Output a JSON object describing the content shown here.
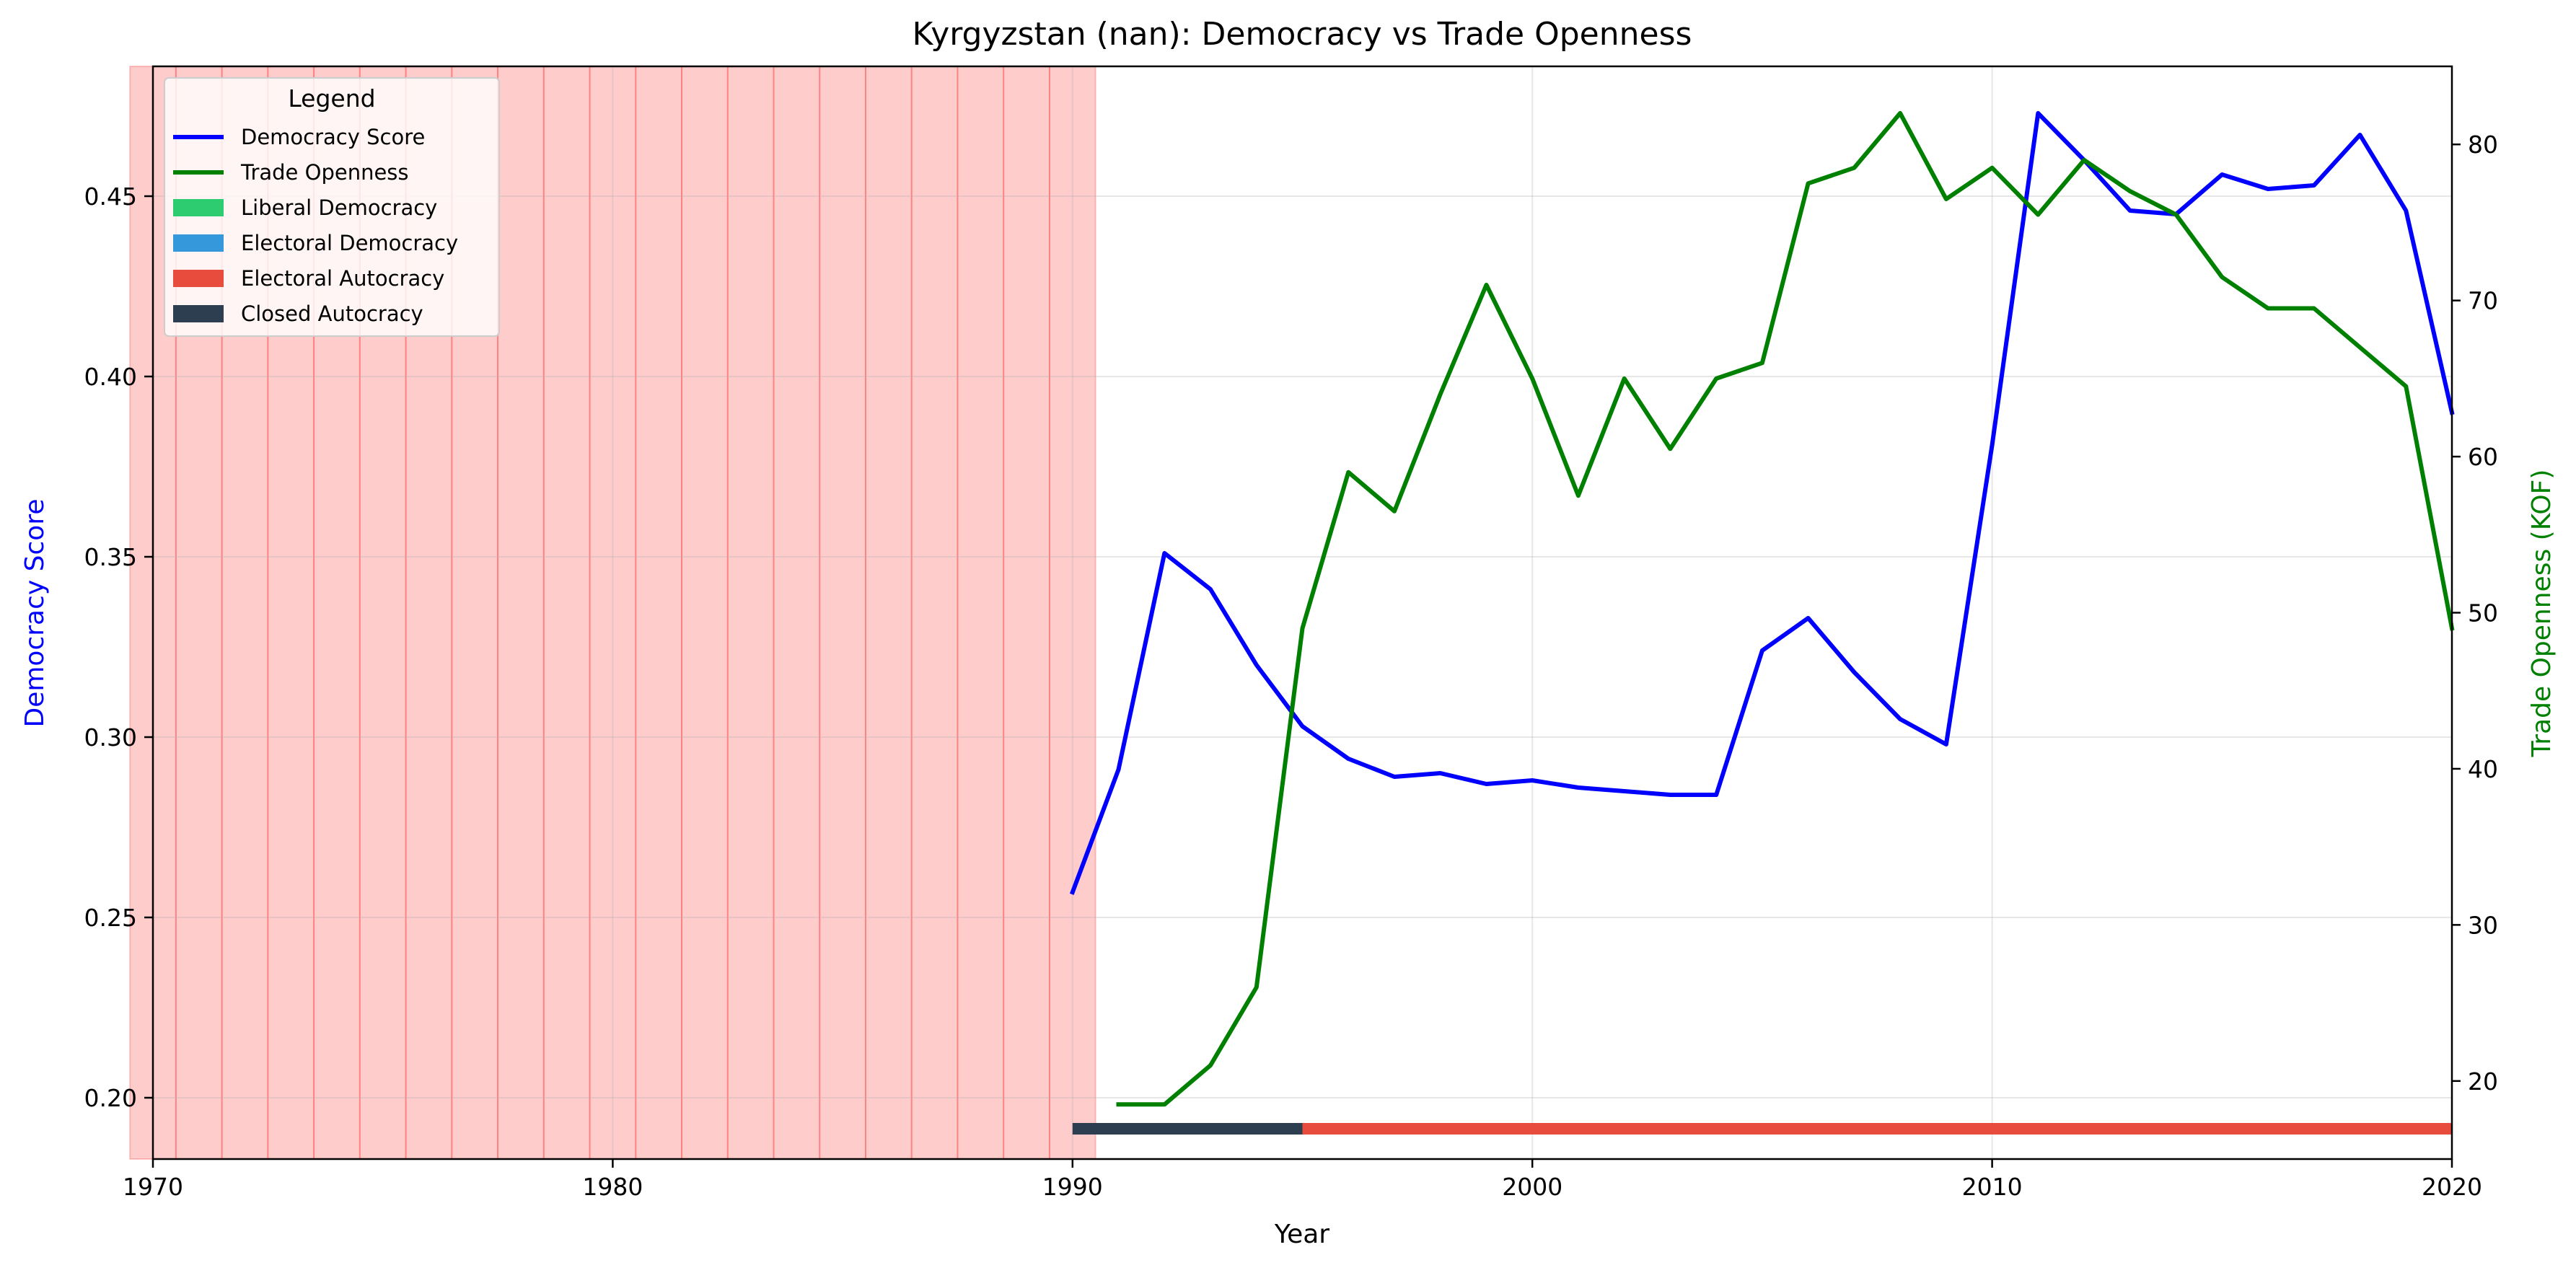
{
  "chart_data": {
    "type": "line",
    "title": "Kyrgyzstan (nan): Democracy vs Trade Openness",
    "xlabel": "Year",
    "ylabel": "Democracy Score",
    "y2label": "Trade Openness (KOF)",
    "xlim": [
      1970,
      2020
    ],
    "ylim": [
      0.183,
      0.486
    ],
    "y2lim": [
      15,
      85
    ],
    "x_ticks": [
      1970,
      1980,
      1990,
      2000,
      2010,
      2020
    ],
    "y_ticks": [
      0.2,
      0.25,
      0.3,
      0.35,
      0.4,
      0.45
    ],
    "y2_ticks": [
      20,
      30,
      40,
      50,
      60,
      70,
      80
    ],
    "grid": true,
    "legend": {
      "title": "Legend",
      "placement": "top-left",
      "entries": [
        {
          "label": "Democracy Score",
          "kind": "line",
          "color": "#0000ff"
        },
        {
          "label": "Trade Openness",
          "kind": "line",
          "color": "#008000"
        },
        {
          "label": "Liberal Democracy",
          "kind": "patch",
          "color": "#2ecc71"
        },
        {
          "label": "Electoral Democracy",
          "kind": "patch",
          "color": "#3498db"
        },
        {
          "label": "Electoral Autocracy",
          "kind": "patch",
          "color": "#e74c3c"
        },
        {
          "label": "Closed Autocracy",
          "kind": "patch",
          "color": "#2c3e50"
        }
      ]
    },
    "shaded_years": [
      1970,
      1971,
      1972,
      1973,
      1974,
      1975,
      1976,
      1977,
      1978,
      1979,
      1980,
      1981,
      1982,
      1983,
      1984,
      1985,
      1986,
      1987,
      1988,
      1989,
      1990
    ],
    "shade_color": "#ff0000",
    "series": [
      {
        "name": "Democracy Score",
        "axis": "left",
        "color": "#0000ff",
        "x": [
          1990,
          1991,
          1992,
          1993,
          1994,
          1995,
          1996,
          1997,
          1998,
          1999,
          2000,
          2001,
          2002,
          2003,
          2004,
          2005,
          2006,
          2007,
          2008,
          2009,
          2010,
          2011,
          2012,
          2013,
          2014,
          2015,
          2016,
          2017,
          2018,
          2019,
          2020
        ],
        "y": [
          0.257,
          0.291,
          0.351,
          0.341,
          0.32,
          0.303,
          0.294,
          0.289,
          0.29,
          0.287,
          0.288,
          0.286,
          0.285,
          0.284,
          0.284,
          0.324,
          0.333,
          0.318,
          0.305,
          0.298,
          0.381,
          0.473,
          0.46,
          0.446,
          0.445,
          0.456,
          0.452,
          0.453,
          0.467,
          0.446,
          0.39
        ]
      },
      {
        "name": "Trade Openness",
        "axis": "right",
        "color": "#008000",
        "x": [
          1991,
          1992,
          1993,
          1994,
          1995,
          1996,
          1997,
          1998,
          1999,
          2000,
          2001,
          2002,
          2003,
          2004,
          2005,
          2006,
          2007,
          2008,
          2009,
          2010,
          2011,
          2012,
          2013,
          2014,
          2015,
          2016,
          2017,
          2018,
          2019,
          2020
        ],
        "y": [
          18.5,
          18.5,
          21.0,
          26.0,
          49.0,
          59.0,
          56.5,
          64.0,
          71.0,
          65.0,
          57.5,
          65.0,
          60.5,
          65.0,
          66.0,
          77.5,
          78.5,
          82.0,
          76.5,
          78.5,
          75.5,
          79.0,
          77.0,
          75.5,
          71.5,
          69.5,
          69.5,
          67.0,
          64.5,
          49.0
        ]
      }
    ],
    "regime_bar": [
      {
        "start": 1990,
        "end": 1995,
        "regime": "Closed Autocracy",
        "color": "#2c3e50"
      },
      {
        "start": 1995,
        "end": 2020,
        "regime": "Electoral Autocracy",
        "color": "#e74c3c"
      }
    ]
  }
}
